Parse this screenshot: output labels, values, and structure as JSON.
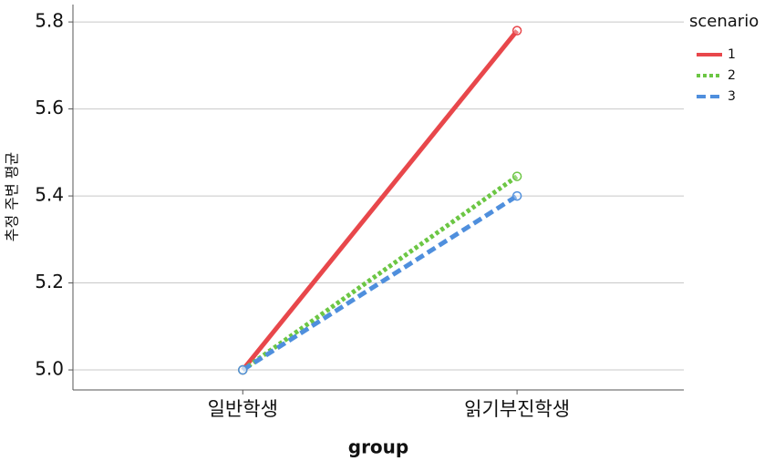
{
  "chart_data": {
    "type": "line",
    "x_label": "group",
    "y_label": "추정 주변 평균",
    "legend_title": "scenario",
    "categories": [
      "일반학생",
      "읽기부진학생"
    ],
    "series": [
      {
        "name": "1",
        "color": "#e8474b",
        "dash": "solid",
        "values": [
          5.0,
          5.78
        ]
      },
      {
        "name": "2",
        "color": "#6cc644",
        "dash": "dotted",
        "values": [
          5.0,
          5.445
        ]
      },
      {
        "name": "3",
        "color": "#4f8fdd",
        "dash": "dashed",
        "values": [
          5.0,
          5.4
        ]
      }
    ],
    "ylim": [
      4.954,
      5.84
    ],
    "yticks": [
      {
        "value": 5.0,
        "label": "5.0"
      },
      5.2,
      5.4,
      5.6,
      5.8
    ],
    "grid": true,
    "legend": "right"
  }
}
